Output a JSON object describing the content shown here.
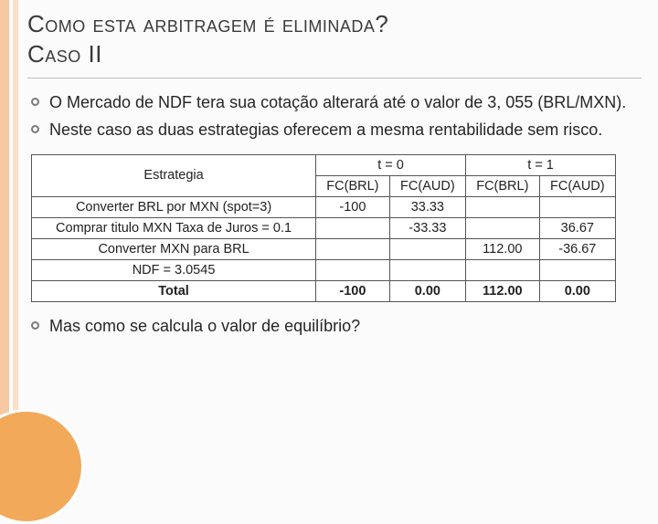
{
  "title_line1": "Como esta arbitragem é eliminada?",
  "title_line2": "Caso II",
  "bullets": [
    "O Mercado de NDF tera sua cotação alterará até o valor de 3, 055 (BRL/MXN).",
    "Neste caso as duas estrategias oferecem a mesma rentabilidade sem risco."
  ],
  "table": {
    "corner": "Estrategia",
    "top_t0": "t = 0",
    "top_t1": "t = 1",
    "sub_t0_a": "FC(BRL)",
    "sub_t0_b": "FC(AUD)",
    "sub_t1_a": "FC(BRL)",
    "sub_t1_b": "FC(AUD)",
    "rows": [
      {
        "label": "Converter BRL por MXN (spot=3)",
        "c1": "-100",
        "c2": "33.33",
        "c3": "",
        "c4": ""
      },
      {
        "label": "Comprar titulo MXN Taxa de Juros = 0.1",
        "c1": "",
        "c2": "-33.33",
        "c3": "",
        "c4": "36.67"
      },
      {
        "label": "Converter MXN para BRL",
        "c1": "",
        "c2": "",
        "c3": "112.00",
        "c4": "-36.67"
      },
      {
        "label": "NDF = 3.0545",
        "c1": "",
        "c2": "",
        "c3": "",
        "c4": ""
      }
    ],
    "total": {
      "label": "Total",
      "c1": "-100",
      "c2": "0.00",
      "c3": "112.00",
      "c4": "0.00"
    }
  },
  "bullet_after": "Mas como se calcula o valor de equilíbrio?",
  "colors": {
    "stripe": "#f6c9a0",
    "stripe_inner": "#fbe0c6",
    "circle": "#f3a95a",
    "bg": "#fbfbfb",
    "text": "#262626",
    "border": "#555555"
  }
}
